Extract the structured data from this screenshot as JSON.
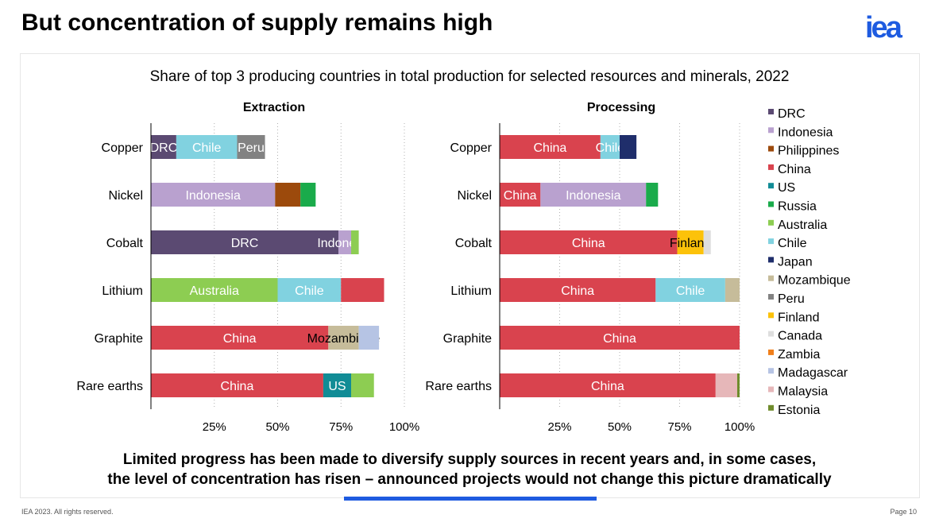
{
  "slide": {
    "title": "But concentration of supply remains high",
    "logo": "iea",
    "footnote_line1": "Limited progress has been made to diversify supply sources in recent years and, in some cases,",
    "footnote_line2": "the level of concentration has risen – announced projects would not change this picture dramatically",
    "copyright": "IEA 2023. All rights reserved.",
    "page": "Page 10"
  },
  "chart_data": {
    "type": "bar",
    "orientation": "horizontal",
    "stacked": true,
    "title": "Share of top 3 producing countries in total production for selected resources and minerals, 2022",
    "categories": [
      "Copper",
      "Nickel",
      "Cobalt",
      "Lithium",
      "Graphite",
      "Rare earths"
    ],
    "xlim": [
      0,
      100
    ],
    "xticks": [
      "25%",
      "50%",
      "75%",
      "100%"
    ],
    "legend": {
      "placement": "right",
      "entries": [
        {
          "name": "DRC",
          "color": "#5b4a72"
        },
        {
          "name": "Indonesia",
          "color": "#b9a1cf"
        },
        {
          "name": "Philippines",
          "color": "#9c4a0c"
        },
        {
          "name": "China",
          "color": "#d9434e"
        },
        {
          "name": "US",
          "color": "#118c96"
        },
        {
          "name": "Russia",
          "color": "#1aab4b"
        },
        {
          "name": "Australia",
          "color": "#8dcd52"
        },
        {
          "name": "Chile",
          "color": "#81d2e0"
        },
        {
          "name": "Japan",
          "color": "#1f2e6b"
        },
        {
          "name": "Mozambique",
          "color": "#c6bc9a"
        },
        {
          "name": "Peru",
          "color": "#828282"
        },
        {
          "name": "Finland",
          "color": "#fcc20a"
        },
        {
          "name": "Canada",
          "color": "#dedede"
        },
        {
          "name": "Zambia",
          "color": "#f07f1b"
        },
        {
          "name": "Madagascar",
          "color": "#b6c4e4"
        },
        {
          "name": "Malaysia",
          "color": "#e6b7b9"
        },
        {
          "name": "Estonia",
          "color": "#6f8c2c"
        }
      ]
    },
    "panels": [
      {
        "title": "Extraction",
        "rows": [
          {
            "category": "Copper",
            "segments": [
              {
                "country": "DRC",
                "value": 10,
                "label": "DRC"
              },
              {
                "country": "Chile",
                "value": 24,
                "label": "Chile"
              },
              {
                "country": "Peru",
                "value": 11,
                "label": "Peru"
              }
            ]
          },
          {
            "category": "Nickel",
            "segments": [
              {
                "country": "Indonesia",
                "value": 49,
                "label": "Indonesia"
              },
              {
                "country": "Philippines",
                "value": 10,
                "label": ""
              },
              {
                "country": "Russia",
                "value": 6,
                "label": ""
              }
            ]
          },
          {
            "category": "Cobalt",
            "segments": [
              {
                "country": "DRC",
                "value": 74,
                "label": "DRC"
              },
              {
                "country": "Indonesia",
                "value": 5,
                "label": "Indonesia"
              },
              {
                "country": "Australia",
                "value": 3,
                "label": ""
              }
            ]
          },
          {
            "category": "Lithium",
            "segments": [
              {
                "country": "Australia",
                "value": 50,
                "label": "Australia"
              },
              {
                "country": "Chile",
                "value": 25,
                "label": "Chile"
              },
              {
                "country": "China",
                "value": 17,
                "label": ""
              }
            ]
          },
          {
            "category": "Graphite",
            "segments": [
              {
                "country": "China",
                "value": 70,
                "label": "China"
              },
              {
                "country": "Mozambique",
                "value": 12,
                "label": "Mozambique"
              },
              {
                "country": "Madagascar",
                "value": 8,
                "label": ""
              }
            ]
          },
          {
            "category": "Rare earths",
            "segments": [
              {
                "country": "China",
                "value": 68,
                "label": "China"
              },
              {
                "country": "US",
                "value": 11,
                "label": "US"
              },
              {
                "country": "Australia",
                "value": 9,
                "label": ""
              }
            ]
          }
        ]
      },
      {
        "title": "Processing",
        "rows": [
          {
            "category": "Copper",
            "segments": [
              {
                "country": "China",
                "value": 42,
                "label": "China"
              },
              {
                "country": "Chile",
                "value": 8,
                "label": "Chile"
              },
              {
                "country": "Japan",
                "value": 7,
                "label": ""
              }
            ]
          },
          {
            "category": "Nickel",
            "segments": [
              {
                "country": "China",
                "value": 17,
                "label": "China"
              },
              {
                "country": "Indonesia",
                "value": 44,
                "label": "Indonesia"
              },
              {
                "country": "Russia",
                "value": 5,
                "label": ""
              }
            ]
          },
          {
            "category": "Cobalt",
            "segments": [
              {
                "country": "China",
                "value": 74,
                "label": "China"
              },
              {
                "country": "Finland",
                "value": 11,
                "label": "Finland"
              },
              {
                "country": "Canada",
                "value": 3,
                "label": ""
              }
            ]
          },
          {
            "category": "Lithium",
            "segments": [
              {
                "country": "China",
                "value": 65,
                "label": "China"
              },
              {
                "country": "Chile",
                "value": 29,
                "label": "Chile"
              },
              {
                "country": "Mozambique",
                "value": 6,
                "label": ""
              }
            ]
          },
          {
            "category": "Graphite",
            "segments": [
              {
                "country": "China",
                "value": 100,
                "label": "China"
              }
            ]
          },
          {
            "category": "Rare earths",
            "segments": [
              {
                "country": "China",
                "value": 90,
                "label": "China"
              },
              {
                "country": "Malaysia",
                "value": 9,
                "label": ""
              },
              {
                "country": "Estonia",
                "value": 1,
                "label": ""
              }
            ]
          }
        ]
      }
    ]
  }
}
